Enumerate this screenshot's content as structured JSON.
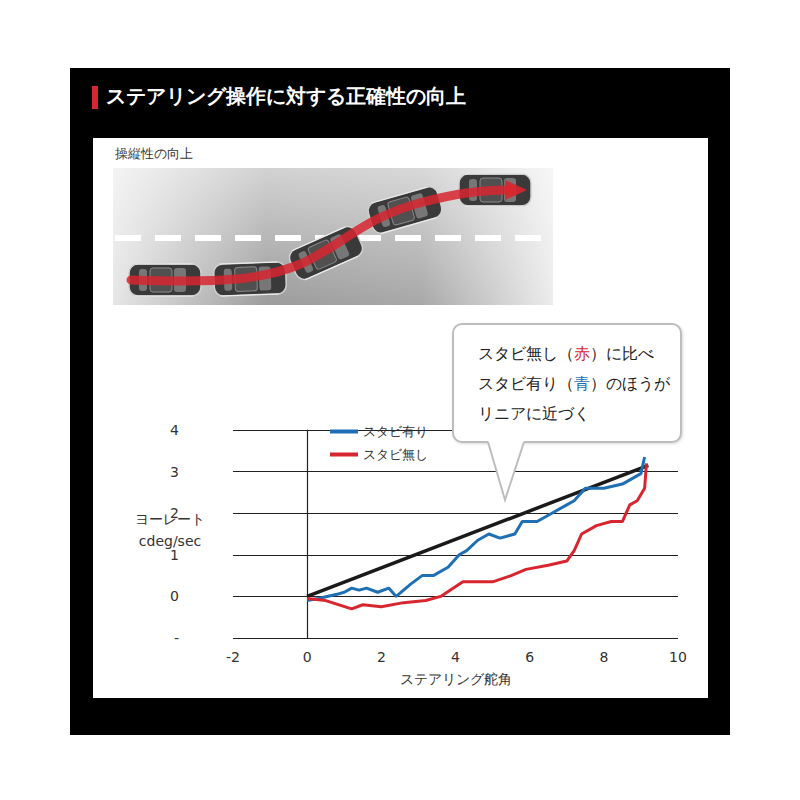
{
  "header": {
    "title": "ステアリング操作に対する正確性の向上"
  },
  "diagram": {
    "label": "操縦性の向上"
  },
  "chart_data": {
    "type": "line",
    "xlabel": "ステアリング舵角",
    "ylabel": "ヨーレート\ncdeg/sec",
    "xlim": [
      -2,
      10
    ],
    "xticks": [
      -2,
      0,
      2,
      4,
      6,
      8,
      10
    ],
    "ylim": [
      -1,
      4
    ],
    "yticks": [
      {
        "value": -1,
        "label": "-"
      },
      0,
      1,
      2,
      3,
      4
    ],
    "grid": true,
    "legend": "upper left",
    "marker": "none",
    "series": [
      {
        "name": "スタビ有り",
        "color": "#1f6fb4",
        "x": [
          0,
          0.3,
          0.8,
          1.0,
          1.2,
          1.4,
          1.6,
          1.9,
          2.2,
          2.4,
          2.8,
          3.1,
          3.4,
          3.8,
          4.1,
          4.3,
          4.6,
          4.9,
          5.2,
          5.6,
          5.8,
          6.2,
          6.6,
          7.0,
          7.2,
          7.5,
          8.0,
          8.5,
          9.0,
          9.1
        ],
        "values": [
          -0.1,
          -0.05,
          0.05,
          0.1,
          0.2,
          0.15,
          0.2,
          0.1,
          0.2,
          0.0,
          0.3,
          0.5,
          0.5,
          0.7,
          1.0,
          1.1,
          1.35,
          1.5,
          1.4,
          1.5,
          1.8,
          1.8,
          2.0,
          2.2,
          2.3,
          2.6,
          2.6,
          2.7,
          2.95,
          3.35
        ]
      },
      {
        "name": "スタビ無し",
        "color": "#d7262f",
        "x": [
          0,
          0.5,
          1.2,
          1.5,
          2.0,
          2.6,
          3.2,
          3.6,
          4.2,
          5.0,
          5.5,
          5.9,
          6.5,
          7.0,
          7.2,
          7.4,
          7.8,
          8.2,
          8.5,
          8.7,
          8.9,
          9.1,
          9.15
        ],
        "values": [
          -0.05,
          -0.1,
          -0.3,
          -0.2,
          -0.25,
          -0.15,
          -0.1,
          0.0,
          0.35,
          0.35,
          0.5,
          0.65,
          0.75,
          0.85,
          1.1,
          1.5,
          1.7,
          1.8,
          1.8,
          2.2,
          2.3,
          2.6,
          3.2
        ]
      },
      {
        "color": "#1a1a1a",
        "x": [
          0,
          9.2
        ],
        "values": [
          0,
          3.15
        ]
      }
    ],
    "annotation": {
      "lines": [
        [
          {
            "text": "スタビ無し（"
          },
          {
            "text": "赤",
            "color": "#d7262f"
          },
          {
            "text": "）に比べ"
          }
        ],
        [
          {
            "text": "スタビ有り（"
          },
          {
            "text": "青",
            "color": "#1f6fb4"
          },
          {
            "text": "）のほうが"
          }
        ],
        [
          {
            "text": "リニアに近づく"
          }
        ]
      ]
    }
  }
}
